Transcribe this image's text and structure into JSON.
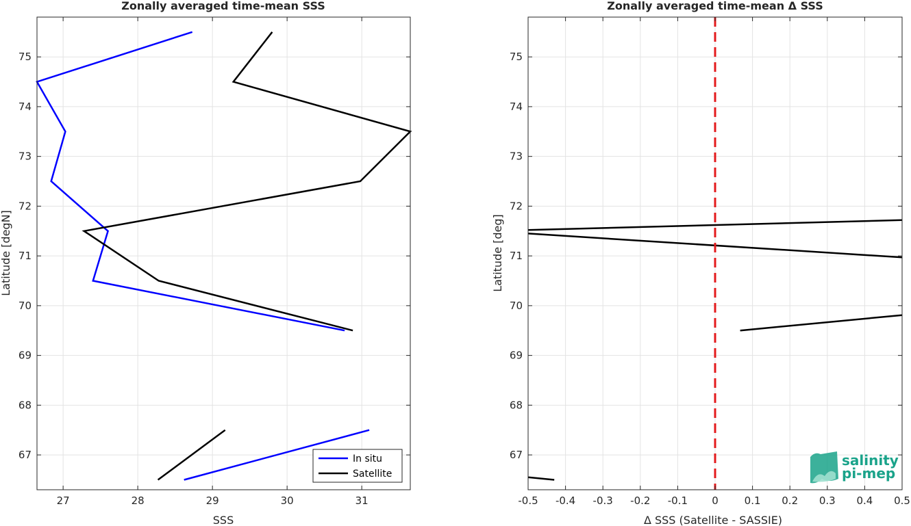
{
  "chart_data": [
    {
      "type": "line",
      "title": "Zonally averaged time-mean SSS",
      "xlabel": "SSS",
      "ylabel": "Latitude [degN]",
      "xlim": [
        26.65,
        31.65
      ],
      "ylim": [
        66.3,
        75.8
      ],
      "xticks": [
        "27",
        "28",
        "29",
        "30",
        "31"
      ],
      "yticks": [
        "67",
        "68",
        "69",
        "70",
        "71",
        "72",
        "73",
        "74",
        "75"
      ],
      "grid": true,
      "legend_position": "bottom-right",
      "series": [
        {
          "name": "In situ",
          "color": "#0000ff",
          "segments": [
            [
              [
                28.73,
                75.5
              ],
              [
                26.65,
                74.5
              ],
              [
                27.03,
                73.5
              ],
              [
                26.84,
                72.5
              ],
              [
                27.6,
                71.5
              ],
              [
                27.4,
                70.5
              ],
              [
                30.77,
                69.5
              ]
            ],
            [
              [
                28.62,
                66.5
              ],
              [
                31.1,
                67.5
              ]
            ]
          ]
        },
        {
          "name": "Satellite",
          "color": "#000000",
          "segments": [
            [
              [
                29.8,
                75.5
              ],
              [
                29.28,
                74.5
              ],
              [
                31.65,
                73.5
              ],
              [
                30.98,
                72.5
              ],
              [
                27.28,
                71.5
              ],
              [
                28.28,
                70.5
              ],
              [
                30.88,
                69.5
              ]
            ],
            [
              [
                28.27,
                66.5
              ],
              [
                29.17,
                67.5
              ]
            ]
          ]
        }
      ]
    },
    {
      "type": "line",
      "title": "Zonally averaged time-mean Δ SSS",
      "xlabel": "Δ SSS (Satellite - SASSIE)",
      "ylabel": "Latitude [deg]",
      "xlim": [
        -0.5,
        0.5
      ],
      "ylim": [
        66.3,
        75.8
      ],
      "xticks": [
        "-0.5",
        "-0.4",
        "-0.3",
        "-0.2",
        "-0.1",
        "0",
        "0.1",
        "0.2",
        "0.3",
        "0.4",
        "0.5"
      ],
      "yticks": [
        "67",
        "68",
        "69",
        "70",
        "71",
        "72",
        "73",
        "74",
        "75"
      ],
      "grid": true,
      "reference_line": {
        "x": 0,
        "color": "#e31a1c",
        "style": "dashed"
      },
      "series": [
        {
          "color": "#000000",
          "segments": [
            [
              [
                0.5,
                71.72
              ],
              [
                -0.5,
                71.52
              ]
            ],
            [
              [
                -0.5,
                71.45
              ],
              [
                0.5,
                70.97
              ]
            ],
            [
              [
                0.067,
                69.5
              ],
              [
                0.5,
                69.81
              ]
            ],
            [
              [
                -0.5,
                66.55
              ],
              [
                -0.43,
                66.5
              ]
            ]
          ]
        }
      ]
    }
  ],
  "logo": {
    "line1": "salinity",
    "line2": "pi-mep",
    "color": "#1aa38a"
  }
}
